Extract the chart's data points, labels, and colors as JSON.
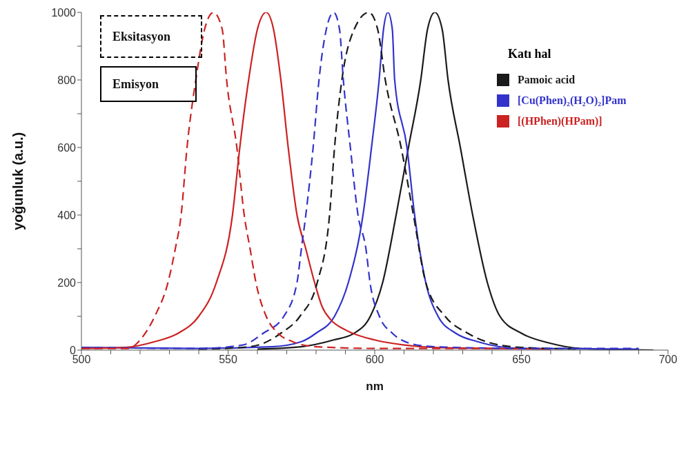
{
  "chart_data": {
    "type": "line",
    "xlabel": "nm",
    "ylabel": "yoğunluk (a.u.)",
    "legend_title": "Katı hal",
    "legend": "top right",
    "annotations": [
      "Eksitasyon",
      "Emisyon"
    ],
    "xlim": [
      500,
      700
    ],
    "xticks": [
      500,
      {
        "value": 510,
        "label": null
      },
      {
        "value": 520,
        "label": null
      },
      {
        "value": 530,
        "label": null
      },
      {
        "value": 540,
        "label": null
      },
      550,
      {
        "value": 560,
        "label": null
      },
      {
        "value": 570,
        "label": null
      },
      {
        "value": 580,
        "label": null
      },
      {
        "value": 590,
        "label": null
      },
      600,
      {
        "value": 610,
        "label": null
      },
      {
        "value": 620,
        "label": null
      },
      {
        "value": 630,
        "label": null
      },
      {
        "value": 640,
        "label": null
      },
      650,
      {
        "value": 660,
        "label": null
      },
      {
        "value": 670,
        "label": null
      },
      {
        "value": 680,
        "label": null
      },
      {
        "value": 690,
        "label": null
      },
      700
    ],
    "ylim": [
      0,
      1000
    ],
    "yticks": [
      0,
      {
        "value": 100,
        "label": null
      },
      200,
      {
        "value": 300,
        "label": null
      },
      400,
      {
        "value": 500,
        "label": null
      },
      600,
      {
        "value": 700,
        "label": null
      },
      800,
      {
        "value": 900,
        "label": null
      },
      1000
    ],
    "marker": "none",
    "series": [
      {
        "name": "Pamoic acid",
        "color": "#1a1a1a",
        "line_style": "solid",
        "x": [
          560,
          575,
          586,
          593,
          598.5,
          602.7,
          607.3,
          611.5,
          615.7,
          618,
          620.5,
          623,
          625,
          629.2,
          633.4,
          638.4,
          642.7,
          650,
          660,
          670,
          695
        ],
        "values": [
          3,
          10,
          30,
          50,
          100,
          200,
          400,
          600,
          800,
          950,
          1000,
          950,
          800,
          600,
          400,
          200,
          100,
          50,
          20,
          5,
          0
        ]
      },
      {
        "name": "[Cu(Phen)₂(H₂O)₂]Pam",
        "color": "#3333cc",
        "line_style": "solid",
        "x": [
          500,
          540,
          565,
          575,
          580,
          586.3,
          591,
          596,
          598.9,
          601.5,
          603,
          604.5,
          606,
          606.8,
          611,
          613.6,
          617.4,
          621.6,
          627.6,
          635,
          650,
          690
        ],
        "values": [
          8,
          5,
          10,
          25,
          50,
          100,
          200,
          400,
          600,
          800,
          950,
          1000,
          950,
          800,
          600,
          400,
          200,
          100,
          50,
          25,
          5,
          3
        ]
      },
      {
        "name": "[(HPhen)(HPam)]",
        "color": "#cc2222",
        "line_style": "solid",
        "x": [
          500,
          515,
          525,
          533,
          540,
          546,
          551.5,
          554,
          557,
          560,
          563,
          565.5,
          568,
          570.5,
          573.5,
          576.5,
          579.5,
          582,
          585,
          590,
          600,
          610,
          620,
          640,
          660
        ],
        "values": [
          5,
          8,
          25,
          50,
          100,
          200,
          400,
          600,
          800,
          950,
          1000,
          950,
          800,
          600,
          400,
          300,
          200,
          130,
          90,
          60,
          30,
          15,
          8,
          5,
          3
        ]
      },
      {
        "color": "#1a1a1a",
        "line_style": "dashed",
        "x": [
          540,
          555,
          562,
          568,
          574.5,
          580.4,
          584.6,
          586.3,
          588.8,
          593,
          598,
          601,
          603.6,
          609,
          613.2,
          617.4,
          624,
          631.7,
          638,
          650,
          670
        ],
        "values": [
          3,
          8,
          20,
          50,
          100,
          200,
          400,
          600,
          800,
          950,
          1000,
          950,
          800,
          600,
          400,
          200,
          100,
          50,
          25,
          8,
          3
        ]
      },
      {
        "color": "#3333cc",
        "line_style": "dashed",
        "x": [
          500,
          540,
          555,
          562,
          569,
          573.5,
          575,
          576.5,
          579,
          581,
          583.5,
          586,
          588,
          589.3,
          591.7,
          594.3,
          597,
          598.4,
          601.6,
          606,
          612,
          620,
          650,
          690
        ],
        "values": [
          8,
          5,
          15,
          50,
          100,
          200,
          300,
          400,
          600,
          800,
          950,
          1000,
          950,
          800,
          600,
          400,
          300,
          200,
          100,
          50,
          20,
          10,
          5,
          5
        ]
      },
      {
        "color": "#cc2222",
        "line_style": "dashed",
        "x": [
          500,
          516,
          520,
          525,
          529.5,
          532,
          534,
          536,
          539,
          542,
          545,
          548,
          549.5,
          553,
          555.5,
          557.5,
          559.5,
          563,
          567,
          572,
          580,
          600,
          640
        ],
        "values": [
          5,
          5,
          30,
          100,
          200,
          300,
          400,
          600,
          800,
          950,
          1000,
          950,
          800,
          600,
          400,
          300,
          200,
          100,
          50,
          25,
          10,
          5,
          5
        ]
      }
    ]
  }
}
